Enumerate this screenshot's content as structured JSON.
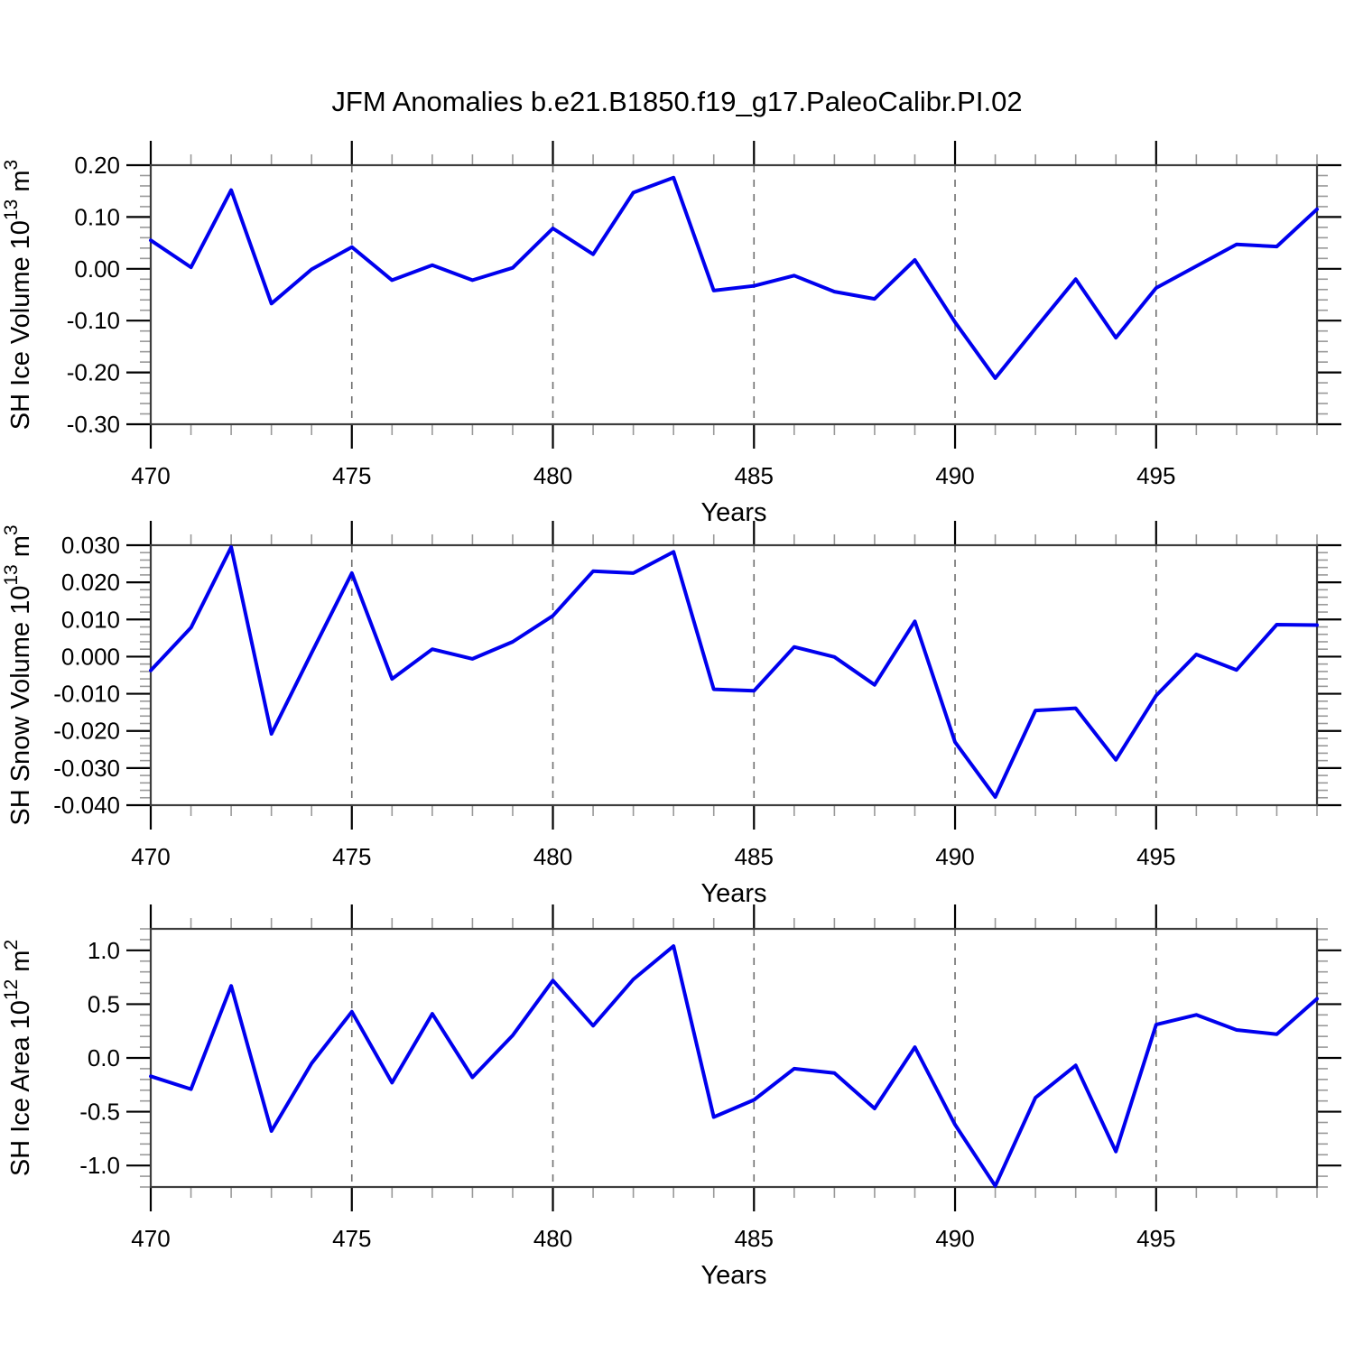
{
  "title": "JFM Anomalies b.e21.B1850.f19_g17.PaleoCalibr.PI.02",
  "x_axis_label": "Years",
  "line_color": "#0000ee",
  "grid_color": "#6f6f6f",
  "frame_color": "#3d3d3d",
  "major_tick_color": "#000000",
  "minor_tick_color": "#999999",
  "x_tick_labels": [
    "470",
    "475",
    "480",
    "485",
    "490",
    "495"
  ],
  "chart_data": {
    "type": "line",
    "title": "JFM Anomalies b.e21.B1850.f19_g17.PaleoCalibr.PI.02",
    "xlabel": "Years",
    "x": [
      470,
      471,
      472,
      473,
      474,
      475,
      476,
      477,
      478,
      479,
      480,
      481,
      482,
      483,
      484,
      485,
      486,
      487,
      488,
      489,
      490,
      491,
      492,
      493,
      494,
      495,
      496,
      497,
      498,
      499
    ],
    "x_major_ticks": [
      470,
      475,
      480,
      485,
      490,
      495
    ],
    "grid_x": [
      475,
      480,
      485,
      490,
      495
    ],
    "xlim": [
      470,
      499
    ],
    "legend": "none",
    "panels": [
      {
        "id": "sh-ice-volume",
        "name": "SH Ice Volume",
        "ylabel_parts": [
          {
            "t": "SH Ice Volume 10"
          },
          {
            "t": "13",
            "sup": true
          },
          {
            "t": " m"
          },
          {
            "t": "3",
            "sup": true
          }
        ],
        "ylim": [
          -0.3,
          0.2
        ],
        "ytick_values": [
          0.2,
          0.1,
          0.0,
          -0.1,
          -0.2,
          -0.3
        ],
        "ytick_labels": [
          "0.20",
          "0.10",
          "0.00",
          "-0.10",
          "-0.20",
          "-0.30"
        ],
        "ytick_minor_step": 0.02,
        "values": [
          0.055,
          0.003,
          0.152,
          -0.067,
          -0.001,
          0.042,
          -0.022,
          0.007,
          -0.022,
          0.002,
          0.078,
          0.028,
          0.147,
          0.176,
          -0.042,
          -0.033,
          -0.013,
          -0.044,
          -0.058,
          0.017,
          -0.103,
          -0.211,
          -0.115,
          -0.02,
          -0.133,
          -0.037,
          0.005,
          0.047,
          0.043,
          0.115
        ]
      },
      {
        "id": "sh-snow-volume",
        "name": "SH Snow Volume",
        "ylabel_parts": [
          {
            "t": "SH Snow Volume 10"
          },
          {
            "t": "13",
            "sup": true
          },
          {
            "t": " m"
          },
          {
            "t": "3",
            "sup": true
          }
        ],
        "ylim": [
          -0.04,
          0.03
        ],
        "ytick_values": [
          0.03,
          0.02,
          0.01,
          0.0,
          -0.01,
          -0.02,
          -0.03,
          -0.04
        ],
        "ytick_labels": [
          "0.030",
          "0.020",
          "0.010",
          "0.000",
          "-0.010",
          "-0.020",
          "-0.030",
          "-0.040"
        ],
        "ytick_minor_step": 0.002,
        "values": [
          -0.0037,
          0.0078,
          0.0295,
          -0.0208,
          0.001,
          0.0225,
          -0.006,
          0.002,
          -0.0006,
          0.004,
          0.011,
          0.023,
          0.0225,
          0.0282,
          -0.0088,
          -0.0092,
          0.0026,
          -0.0001,
          -0.0076,
          0.0095,
          -0.023,
          -0.0378,
          -0.0145,
          -0.0139,
          -0.0278,
          -0.0105,
          0.0006,
          -0.0036,
          0.0086,
          0.0085
        ]
      },
      {
        "id": "sh-ice-area",
        "name": "SH Ice Area",
        "ylabel_parts": [
          {
            "t": "SH Ice Area 10"
          },
          {
            "t": "12",
            "sup": true
          },
          {
            "t": " m"
          },
          {
            "t": "2",
            "sup": true
          }
        ],
        "ylim": [
          -1.2,
          1.2
        ],
        "ytick_values": [
          1.0,
          0.5,
          0.0,
          -0.5,
          -1.0
        ],
        "ytick_labels": [
          "1.0",
          "0.5",
          "0.0",
          "-0.5",
          "-1.0"
        ],
        "ytick_minor_step": 0.1,
        "values": [
          -0.17,
          -0.29,
          0.67,
          -0.68,
          -0.05,
          0.43,
          -0.23,
          0.41,
          -0.18,
          0.21,
          0.72,
          0.3,
          0.73,
          1.04,
          -0.55,
          -0.39,
          -0.1,
          -0.14,
          -0.47,
          0.1,
          -0.62,
          -1.19,
          -0.37,
          -0.07,
          -0.87,
          0.31,
          0.4,
          0.26,
          0.22,
          0.55
        ]
      }
    ]
  }
}
